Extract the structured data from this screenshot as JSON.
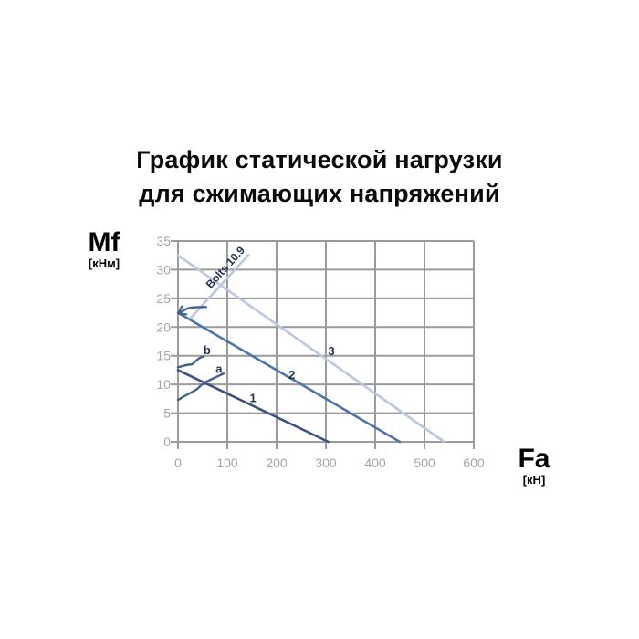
{
  "title": {
    "line1": "График статической нагрузки",
    "line2": "для сжимающих напряжений"
  },
  "y_axis": {
    "name": "Mf",
    "unit": "[кНм]",
    "ticks": [
      35,
      30,
      25,
      20,
      15,
      10,
      5,
      0
    ],
    "min": 0,
    "max": 35
  },
  "x_axis": {
    "name": "Fa",
    "unit": "[кН]",
    "ticks": [
      0,
      100,
      200,
      300,
      400,
      500,
      600
    ],
    "min": 0,
    "max": 600
  },
  "colors": {
    "title_text": "#0b0b0b",
    "grid": "#9b9b9b",
    "tick_text": "#a5a5a8",
    "dark_line": "#3a5282",
    "medium_line": "#4c74ac",
    "light_line": "#bac7e3",
    "curve_line": "#41608e",
    "label_text": "#25314d"
  },
  "chart_data": {
    "type": "line",
    "title": "График статической нагрузки для сжимающих напряжений",
    "xlabel": "Fa [кН]",
    "ylabel": "Mf [кНм]",
    "xlim": [
      0,
      600
    ],
    "ylim": [
      0,
      35
    ],
    "grid": true,
    "series": [
      {
        "name": "line-1",
        "points": [
          [
            0,
            12.5
          ],
          [
            305,
            0
          ]
        ],
        "color_key": "dark_line",
        "width": 2.6
      },
      {
        "name": "line-2",
        "points": [
          [
            0,
            22.5
          ],
          [
            450,
            0
          ]
        ],
        "color_key": "medium_line",
        "width": 2.6
      },
      {
        "name": "line-3",
        "points": [
          [
            0,
            32.5
          ],
          [
            540,
            0
          ]
        ],
        "color_key": "light_line",
        "width": 2.6
      },
      {
        "name": "bolts-10-9-line",
        "points": [
          [
            26,
            21.6
          ],
          [
            143,
            32.6
          ]
        ],
        "color_key": "light_line",
        "width": 2.6
      },
      {
        "name": "bolts-arrow-curve",
        "points": [
          [
            2,
            22.4
          ],
          [
            18,
            23.2
          ],
          [
            35,
            23.45
          ],
          [
            57,
            23.5
          ]
        ],
        "color_key": "curve_line",
        "width": 2.4,
        "smooth": true,
        "arrow_start": true
      },
      {
        "name": "curve-a",
        "points": [
          [
            0,
            7.3
          ],
          [
            18,
            8.2
          ],
          [
            37,
            9.1
          ],
          [
            52,
            10.2
          ],
          [
            75,
            11.2
          ],
          [
            93,
            11.9
          ]
        ],
        "color_key": "curve_line",
        "width": 2.4,
        "smooth": true
      },
      {
        "name": "curve-b",
        "points": [
          [
            0,
            13.0
          ],
          [
            18,
            13.4
          ],
          [
            28,
            13.5
          ],
          [
            35,
            14.0
          ],
          [
            43,
            14.55
          ],
          [
            52,
            14.9
          ]
        ],
        "color_key": "curve_line",
        "width": 2.4,
        "smooth": true
      }
    ],
    "annotations": [
      {
        "text": "1",
        "x": 152,
        "y": 7.6,
        "size": 13
      },
      {
        "text": "2",
        "x": 231,
        "y": 11.7,
        "size": 13
      },
      {
        "text": "3",
        "x": 311,
        "y": 15.8,
        "size": 13
      },
      {
        "text": "a",
        "x": 83,
        "y": 12.7,
        "size": 13
      },
      {
        "text": "b",
        "x": 59,
        "y": 16.0,
        "size": 13
      },
      {
        "text": "Bolts 10.9",
        "x": 96,
        "y": 30.4,
        "size": 12,
        "rotation": -48
      }
    ],
    "legend": null
  }
}
